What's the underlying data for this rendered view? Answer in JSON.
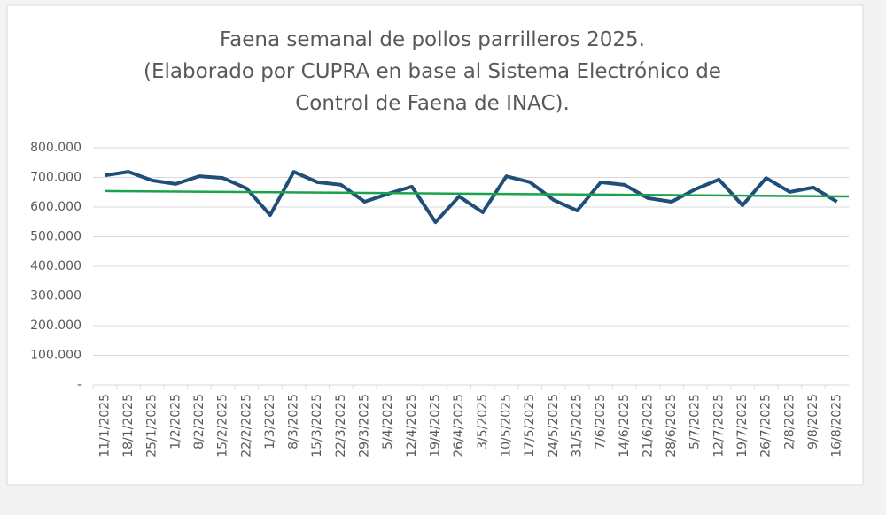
{
  "chart_data": {
    "type": "line",
    "title": [
      "Faena semanal de pollos parrilleros 2025.",
      "(Elaborado por CUPRA en base al Sistema Electrónico de",
      "Control de Faena de INAC)."
    ],
    "categories": [
      "11/1/2025",
      "18/1/2025",
      "25/1/2025",
      "1/2/2025",
      "8/2/2025",
      "15/2/2025",
      "22/2/2025",
      "1/3/2025",
      "8/3/2025",
      "15/3/2025",
      "22/3/2025",
      "29/3/2025",
      "5/4/2025",
      "12/4/2025",
      "19/4/2025",
      "26/4/2025",
      "3/5/2025",
      "10/5/2025",
      "17/5/2025",
      "24/5/2025",
      "31/5/2025",
      "7/6/2025",
      "14/6/2025",
      "21/6/2025",
      "28/6/2025",
      "5/7/2025",
      "12/7/2025",
      "19/7/2025",
      "26/7/2025",
      "2/8/2025",
      "9/8/2025",
      "16/8/2025"
    ],
    "values": [
      707000,
      719000,
      690000,
      678000,
      704000,
      698000,
      663000,
      573000,
      719000,
      684000,
      675000,
      618000,
      645000,
      669000,
      549000,
      636000,
      582000,
      704000,
      684000,
      624000,
      588000,
      684000,
      675000,
      630000,
      618000,
      660000,
      693000,
      606000,
      698000,
      651000,
      666000,
      618000
    ],
    "color": "#1f4e79",
    "trendline": {
      "color": "#1aa34a",
      "values": [
        654000,
        636000
      ]
    },
    "ylim": [
      0,
      800000
    ],
    "yticks": [
      {
        "value": 0,
        "label": "-"
      },
      {
        "value": 100000,
        "label": "100.000"
      },
      {
        "value": 200000,
        "label": "200.000"
      },
      {
        "value": 300000,
        "label": "300.000"
      },
      {
        "value": 400000,
        "label": "400.000"
      },
      {
        "value": 500000,
        "label": "500.000"
      },
      {
        "value": 600000,
        "label": "600.000"
      },
      {
        "value": 700000,
        "label": "700.000"
      },
      {
        "value": 800000,
        "label": "800.000"
      }
    ],
    "grid": true
  }
}
